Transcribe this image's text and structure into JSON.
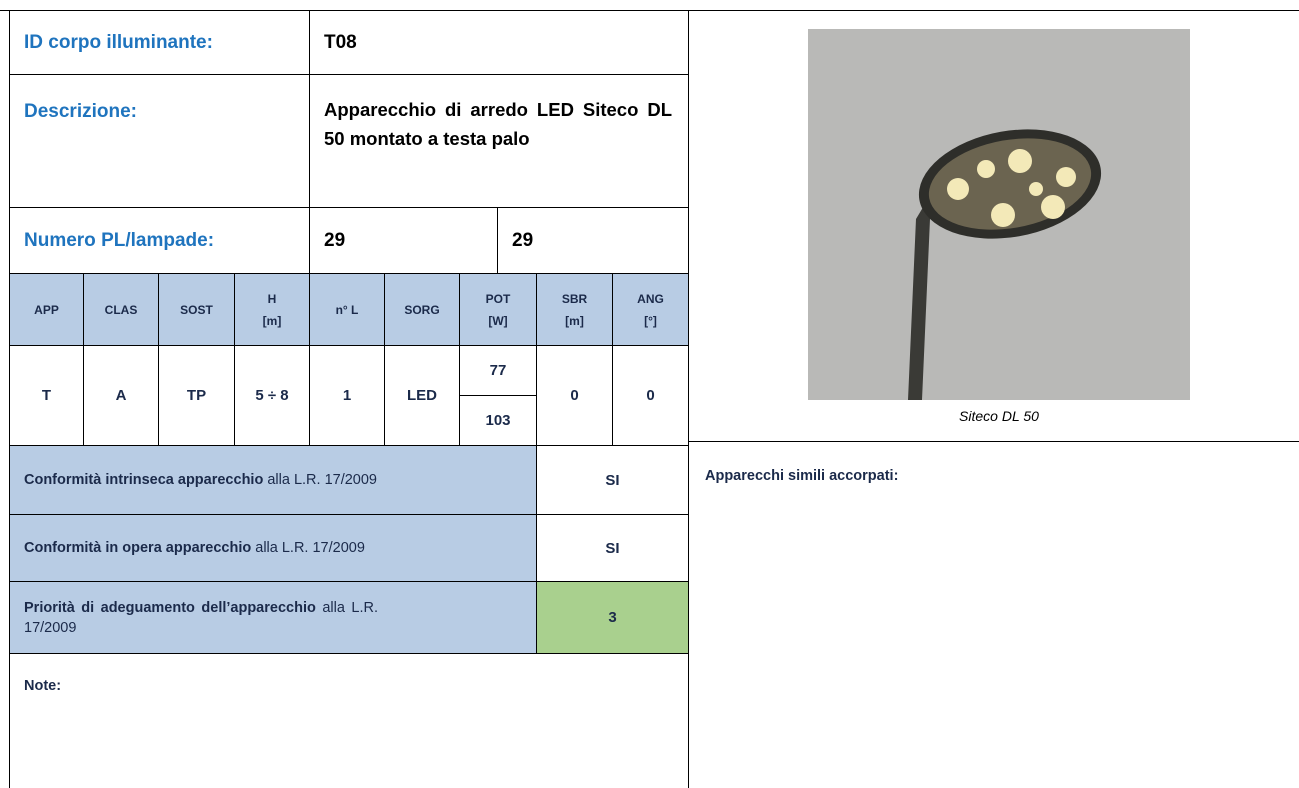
{
  "header": {
    "id_label": "ID corpo illuminante:",
    "id_value": "T08",
    "description_label": "Descrizione:",
    "description_value": "Apparecchio di arredo LED Siteco DL 50 montato a testa palo",
    "lamps_label": "Numero PL/lampade:",
    "lamps_values": [
      "29",
      "29"
    ]
  },
  "table": {
    "columns": [
      [
        "APP"
      ],
      [
        "CLAS"
      ],
      [
        "SOST"
      ],
      [
        "H",
        "[m]"
      ],
      [
        "n° L"
      ],
      [
        "SORG"
      ],
      [
        "POT",
        "[W]"
      ],
      [
        "SBR",
        "[m]"
      ],
      [
        "ANG",
        "[°]"
      ]
    ],
    "row": {
      "app": "T",
      "clas": "A",
      "sost": "TP",
      "h": "5 ÷ 8",
      "n_l": "1",
      "sorg": "LED",
      "pot": [
        "77",
        "103"
      ],
      "sbr": "0",
      "ang": "0"
    }
  },
  "conformity": [
    {
      "bold": "Conformità intrinseca apparecchio",
      "text": "alla L.R. 17/2009",
      "value": "SI"
    },
    {
      "bold": "Conformità in opera apparecchio",
      "text": "alla L.R. 17/2009",
      "value": "SI"
    },
    {
      "bold": "Priorità di adeguamento dell’apparecchio",
      "text": "alla L.R. 17/2009",
      "value": "3"
    }
  ],
  "notes_label": "Note:",
  "image": {
    "caption": "Siteco DL 50"
  },
  "similar_label": "Apparecchi simili accorpati:"
}
